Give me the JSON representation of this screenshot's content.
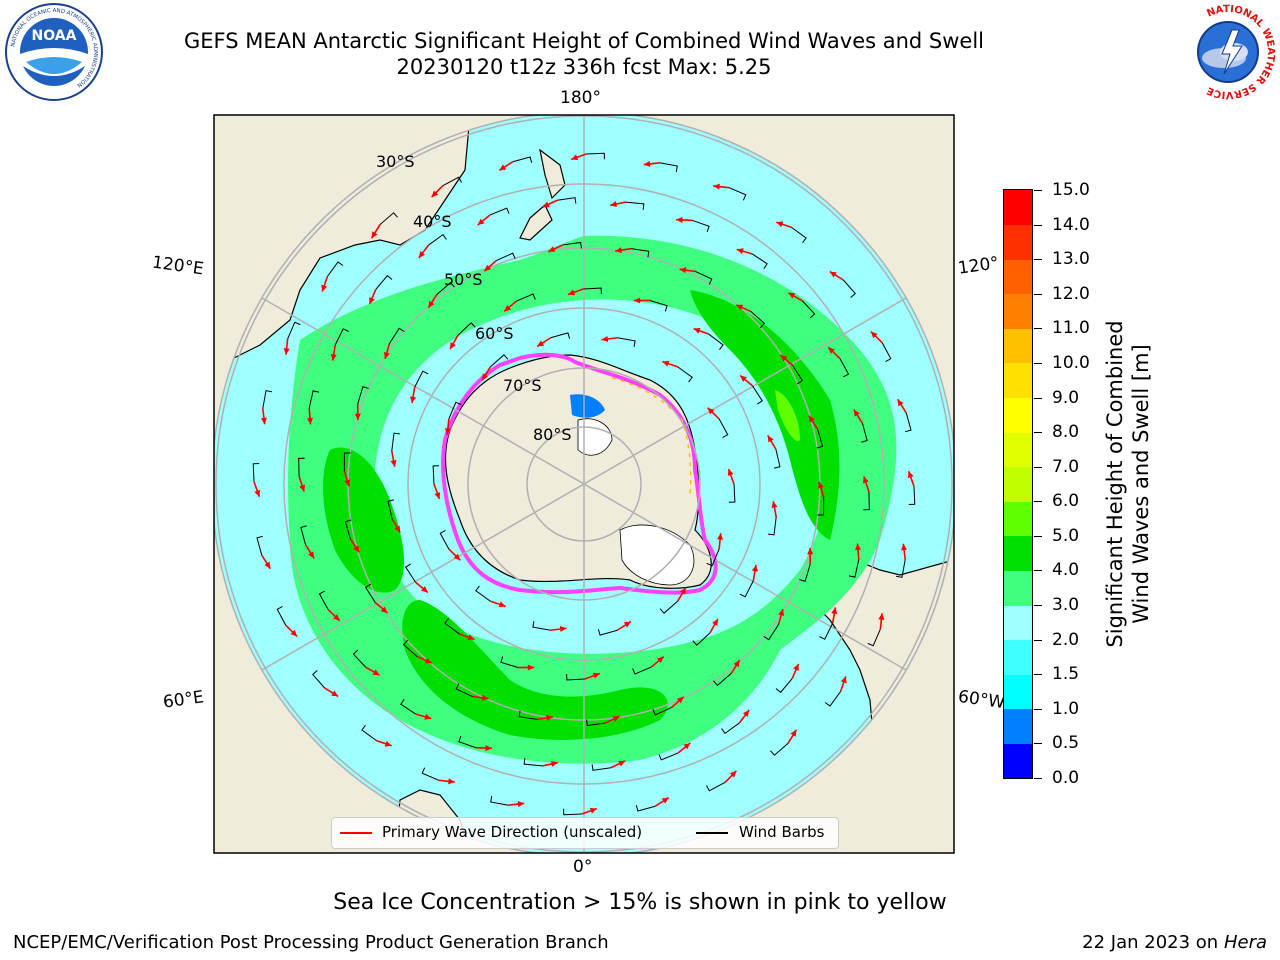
{
  "title": {
    "line1": "GEFS MEAN Antarctic Significant Height of Combined Wind Waves and Swell",
    "line2": "20230120 t12z 336h fcst   Max: 5.25"
  },
  "logos": {
    "noaa_text": "NOAA",
    "noaa_ring_text": "NATIONAL OCEANIC AND ATMOSPHERIC ADMINISTRATION",
    "noaa_ring_bottom": "U.S. DEPARTMENT OF COMMERCE",
    "nws_ring_text": "NATIONAL WEATHER SERVICE"
  },
  "map": {
    "longitude_labels": {
      "top": "180°",
      "bottom": "0°",
      "upper_left": "120°E",
      "lower_left": "60°E",
      "upper_right": "120°",
      "lower_right": "60°W"
    },
    "latitude_labels": [
      "30°S",
      "40°S",
      "50°S",
      "60°S",
      "70°S",
      "80°S"
    ],
    "colors": {
      "land": "#efecdc",
      "sea_ice": "#ffffff",
      "ice_edge": "#ff40ff",
      "arrow": "#ff0000",
      "barb": "#000000",
      "grid": "#b0b0b0"
    }
  },
  "colorbar": {
    "label_line1": "Significant Height of Combined",
    "label_line2": "Wind Waves and Swell [m]",
    "ticks": [
      "0.0",
      "0.5",
      "1.0",
      "1.5",
      "2.0",
      "3.0",
      "4.0",
      "5.0",
      "6.0",
      "7.0",
      "8.0",
      "9.0",
      "10.0",
      "11.0",
      "12.0",
      "13.0",
      "14.0",
      "15.0"
    ],
    "colors": [
      "#0000ff",
      "#0080ff",
      "#00ffff",
      "#40ffff",
      "#a0ffff",
      "#40ff80",
      "#00e000",
      "#60ff00",
      "#c0ff00",
      "#e0ff00",
      "#ffff00",
      "#ffe000",
      "#ffc000",
      "#ff8000",
      "#ff6000",
      "#ff3000",
      "#ff0000"
    ]
  },
  "legend": {
    "wave_direction": "Primary Wave Direction (unscaled)",
    "wind_barbs": "Wind Barbs"
  },
  "note": "Sea Ice Concentration > 15% is shown in pink to yellow",
  "footer": {
    "left": "NCEP/EMC/Verification Post Processing Product Generation Branch",
    "right_prefix": "22 Jan 2023 on ",
    "right_host": "Hera"
  }
}
